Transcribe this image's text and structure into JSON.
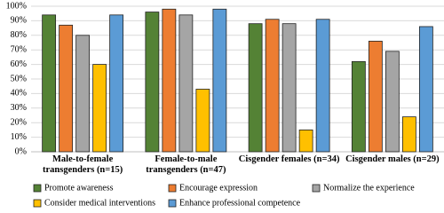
{
  "chart_data": {
    "type": "bar",
    "categories": [
      "Male-to-female\ntransgenders (n=15)",
      "Female-to-male\ntransgenders (n=47)",
      "Cisgender females (n=34)",
      "Cisgender males (n=29)"
    ],
    "series": [
      {
        "name": "Promote awareness",
        "color": "#548235",
        "values": [
          94,
          96,
          88,
          62
        ]
      },
      {
        "name": "Encourage expression",
        "color": "#ed7d31",
        "values": [
          87,
          98,
          91,
          76
        ]
      },
      {
        "name": "Normalize the experience",
        "color": "#a5a5a5",
        "values": [
          80,
          94,
          88,
          69
        ]
      },
      {
        "name": "Consider medical interventions",
        "color": "#ffc000",
        "values": [
          60,
          43,
          15,
          24
        ]
      },
      {
        "name": "Enhance professional competence",
        "color": "#5b9bd5",
        "values": [
          94,
          98,
          91,
          86
        ]
      }
    ],
    "ylim": [
      0,
      100
    ],
    "yticks": [
      {
        "value": 0,
        "label": "0%"
      },
      {
        "value": 10,
        "label": "10%"
      },
      {
        "value": 20,
        "label": "20%"
      },
      {
        "value": 30,
        "label": "30%"
      },
      {
        "value": 40,
        "label": "40%"
      },
      {
        "value": 50,
        "label": "50%"
      },
      {
        "value": 60,
        "label": "60%"
      },
      {
        "value": 70,
        "label": "70%"
      },
      {
        "value": 80,
        "label": "80%"
      },
      {
        "value": 90,
        "label": "90%"
      },
      {
        "value": 100,
        "label": "100%"
      }
    ],
    "grid": true
  }
}
